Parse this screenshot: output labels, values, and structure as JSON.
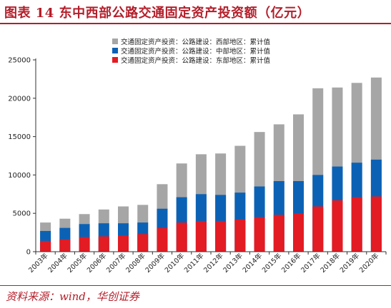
{
  "figure_title": "图表 14   东中西部公路交通固定资产投资额（亿元）",
  "source_text": "资料来源：wind，华创证券",
  "colors": {
    "west": "#a6a6a6",
    "central": "#0b62b5",
    "east": "#e31b23",
    "accent": "#b41e2a",
    "axis": "#333333"
  },
  "chart_data": {
    "type": "bar",
    "stacked": true,
    "title": "",
    "xlabel": "",
    "ylabel": "",
    "ylim": [
      0,
      25000
    ],
    "yticks": [
      0,
      5000,
      10000,
      15000,
      20000,
      25000
    ],
    "ytick_labels": [
      "0",
      "5000",
      "10000",
      "15000",
      "20000",
      "25000"
    ],
    "grid": false,
    "legend_position": "top-center",
    "categories": [
      "2003年",
      "2004年",
      "2005年",
      "2006年",
      "2007年",
      "2008年",
      "2009年",
      "2010年",
      "2011年",
      "2012年",
      "2013年",
      "2014年",
      "2015年",
      "2016年",
      "2017年",
      "2018年",
      "2019年",
      "2020年"
    ],
    "series": [
      {
        "name": "交通固定资产投资：公路建设：西部地区：累计值",
        "key": "west",
        "cumulative": [
          3800,
          4300,
          4900,
          5500,
          5900,
          6100,
          8800,
          11500,
          12700,
          12800,
          13800,
          15600,
          16600,
          17900,
          21300,
          21400,
          22000,
          22700
        ]
      },
      {
        "name": "交通固定资产投资：公路建设：中部地区：累计值",
        "key": "central",
        "cumulative": [
          2700,
          3100,
          3600,
          3700,
          3700,
          3800,
          5600,
          7100,
          7500,
          7400,
          7700,
          8500,
          9200,
          9200,
          10000,
          11100,
          11600,
          12000
        ]
      },
      {
        "name": "交通固定资产投资：公路建设：东部地区：累计值",
        "key": "east",
        "cumulative": [
          1400,
          1600,
          1900,
          2000,
          2100,
          2300,
          3100,
          3800,
          4000,
          4000,
          4200,
          4500,
          4800,
          5000,
          5900,
          6700,
          7100,
          7200
        ]
      }
    ]
  }
}
